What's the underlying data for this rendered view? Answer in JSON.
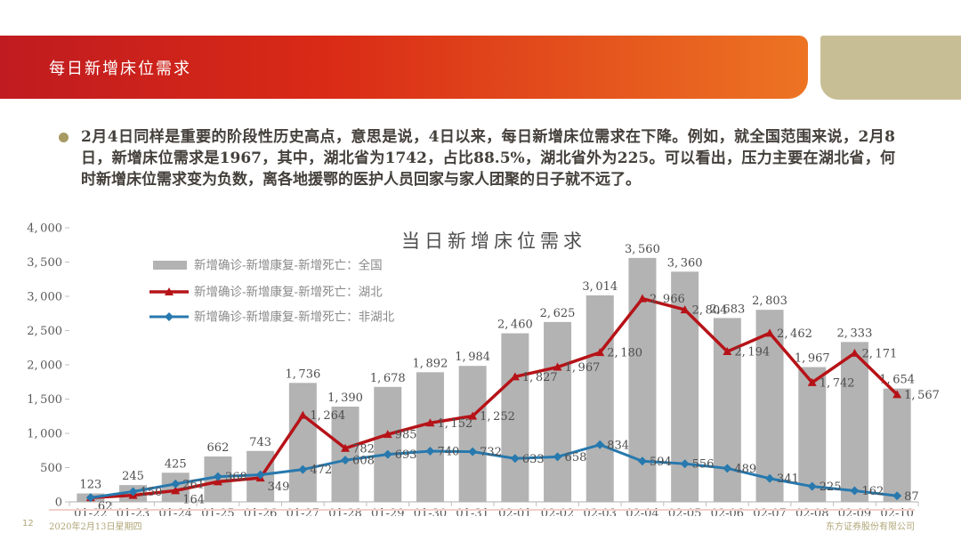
{
  "header": {
    "title": "每日新增床位需求"
  },
  "bullet_text": "2月4日同样是重要的阶段性历史高点，意思是说，4日以来，每日新增床位需求在下降。例如，就全国范围来说，2月8日，新增床位需求是1967，其中，湖北省为1742，占比88.5%，湖北省外为225。可以看出，压力主要在湖北省，何时新增床位需求变为负数，离各地援鄂的医护人员回家与家人团聚的日子就不远了。",
  "footer": {
    "page_number": "12",
    "date": "2020年2月13日星期四",
    "company": "东方证券股份有限公司"
  },
  "colors": {
    "banner_gradient_left": "#c01b20",
    "banner_gradient_right": "#ed7423",
    "tan_block": "#c8be96",
    "bullet_dot": "#a79a63",
    "bar": "#b3b3b3",
    "hubei_line": "#b61318",
    "non_hubei_line": "#2779ae",
    "data_label": "#4d4d4d",
    "axis_text": "#595959",
    "legend_text": "#8a8a8a",
    "axis_line": "#bfbfbf",
    "footer_text": "#b0a678",
    "footer_separator": "#f0d0c8"
  },
  "chart_data": {
    "type": "bar+line",
    "title": "当日新增床位需求",
    "categories": [
      "01-22",
      "01-23",
      "01-24",
      "01-25",
      "01-26",
      "01-27",
      "01-28",
      "01-29",
      "01-30",
      "01-31",
      "02-01",
      "02-02",
      "02-03",
      "02-04",
      "02-05",
      "02-06",
      "02-07",
      "02-08",
      "02-09",
      "02-10"
    ],
    "series": [
      {
        "name": "新增确诊-新增康复-新增死亡：全国",
        "type": "bar",
        "color": "#b3b3b3",
        "values": [
          123,
          245,
          425,
          662,
          743,
          1736,
          1390,
          1678,
          1892,
          1984,
          2460,
          2625,
          3014,
          3560,
          3360,
          2683,
          2803,
          1967,
          2333,
          1654
        ],
        "label_visible": [
          true,
          true,
          true,
          true,
          true,
          true,
          true,
          true,
          true,
          true,
          true,
          true,
          true,
          true,
          true,
          true,
          true,
          true,
          true,
          true
        ]
      },
      {
        "name": "新增确诊-新增康复-新增死亡：湖北",
        "type": "line",
        "marker": "triangle",
        "color": "#b61318",
        "values": [
          62,
          95,
          164,
          294,
          349,
          1264,
          782,
          985,
          1152,
          1252,
          1827,
          1967,
          2180,
          2966,
          2804,
          2194,
          2462,
          1742,
          2171,
          1567
        ],
        "label_visible": [
          true,
          false,
          true,
          false,
          true,
          true,
          true,
          true,
          true,
          true,
          true,
          true,
          true,
          true,
          true,
          true,
          true,
          true,
          true,
          true
        ]
      },
      {
        "name": "新增确诊-新增康复-新增死亡：非湖北",
        "type": "line",
        "marker": "diamond",
        "color": "#2779ae",
        "values": [
          61,
          150,
          261,
          368,
          394,
          472,
          608,
          693,
          740,
          732,
          633,
          658,
          834,
          594,
          556,
          489,
          341,
          225,
          162,
          87
        ],
        "label_visible": [
          false,
          true,
          true,
          true,
          false,
          true,
          true,
          true,
          true,
          true,
          true,
          true,
          true,
          true,
          true,
          true,
          true,
          true,
          true,
          true
        ]
      }
    ],
    "ylim": [
      0,
      4000
    ],
    "ytick_step": 500,
    "grid": false,
    "legend_position": "upper-left-inside"
  }
}
